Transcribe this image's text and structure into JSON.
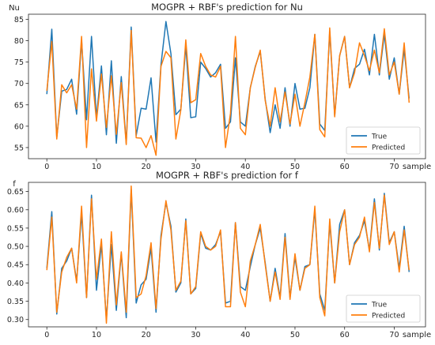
{
  "colors": {
    "true": "#1f77b4",
    "predicted": "#ff7f0e",
    "axis": "#262626",
    "legend_border": "#cccccc"
  },
  "chart_data": [
    {
      "type": "line",
      "title": "MOGPR + RBF's prediction for Nu",
      "ylabel": "Nu",
      "xlabel": "sample",
      "xlim": [
        -3.7,
        76.3
      ],
      "ylim": [
        52.4,
        86.2
      ],
      "xticks": [
        0,
        10,
        20,
        30,
        40,
        50,
        60,
        70
      ],
      "xtick_labels": [
        "0",
        "10",
        "20",
        "30",
        "40",
        "50",
        "60",
        "70"
      ],
      "yticks": [
        55,
        60,
        65,
        70,
        75,
        80,
        85
      ],
      "ytick_labels": [
        "55",
        "60",
        "65",
        "70",
        "75",
        "80",
        "85"
      ],
      "legend": {
        "position": "lower-right",
        "labels": [
          "True",
          "Predicted"
        ]
      },
      "series": [
        {
          "name": "True",
          "color_key": "true",
          "x": [
            0,
            1,
            2,
            3,
            4,
            5,
            6,
            7,
            8,
            9,
            10,
            11,
            12,
            13,
            14,
            15,
            16,
            17,
            18,
            19,
            20,
            21,
            22,
            23,
            24,
            25,
            26,
            27,
            28,
            29,
            30,
            31,
            32,
            33,
            34,
            35,
            36,
            37,
            38,
            39,
            40,
            41,
            42,
            43,
            44,
            45,
            46,
            47,
            48,
            49,
            50,
            51,
            52,
            53,
            54,
            55,
            56,
            57,
            58,
            59,
            60,
            61,
            62,
            63,
            64,
            65,
            66,
            67,
            68,
            69,
            70,
            71,
            72,
            73
          ],
          "values": [
            67.5,
            82.7,
            57.4,
            68.2,
            68.6,
            71.0,
            62.8,
            80.0,
            61.5,
            81.0,
            62.0,
            74.1,
            58.0,
            75.3,
            56.0,
            71.6,
            56.0,
            83.2,
            57.8,
            64.2,
            64.0,
            71.3,
            56.3,
            74.4,
            84.5,
            77.0,
            62.7,
            64.0,
            78.8,
            62.0,
            62.2,
            75.0,
            73.5,
            71.5,
            72.5,
            74.5,
            59.5,
            61.0,
            76.0,
            61.0,
            60.0,
            69.0,
            74.0,
            77.5,
            66.3,
            58.5,
            65.0,
            59.5,
            69.0,
            60.0,
            70.0,
            64.0,
            64.2,
            69.0,
            81.5,
            60.5,
            59.0,
            82.2,
            62.5,
            76.5,
            81.0,
            69.0,
            73.5,
            74.5,
            78.0,
            72.0,
            81.5,
            72.0,
            81.5,
            71.0,
            76.0,
            67.5,
            78.0,
            66.5
          ]
        },
        {
          "name": "Predicted",
          "color_key": "predicted",
          "x": [
            0,
            1,
            2,
            3,
            4,
            5,
            6,
            7,
            8,
            9,
            10,
            11,
            12,
            13,
            14,
            15,
            16,
            17,
            18,
            19,
            20,
            21,
            22,
            23,
            24,
            25,
            26,
            27,
            28,
            29,
            30,
            31,
            32,
            33,
            34,
            35,
            36,
            37,
            38,
            39,
            40,
            41,
            42,
            43,
            44,
            45,
            46,
            47,
            48,
            49,
            50,
            51,
            52,
            53,
            54,
            55,
            56,
            57,
            58,
            59,
            60,
            61,
            62,
            63,
            64,
            65,
            66,
            67,
            68,
            69,
            70,
            71,
            72,
            73
          ],
          "values": [
            68.3,
            79.8,
            57.0,
            69.7,
            67.8,
            69.7,
            64.0,
            81.0,
            55.0,
            73.4,
            61.2,
            72.2,
            59.7,
            71.8,
            58.1,
            70.2,
            55.7,
            82.4,
            57.3,
            57.2,
            55.0,
            57.8,
            53.2,
            74.0,
            77.5,
            76.0,
            57.0,
            63.8,
            80.2,
            65.5,
            66.2,
            77.0,
            74.0,
            72.0,
            71.5,
            74.0,
            55.0,
            63.0,
            81.0,
            59.5,
            58.0,
            69.0,
            73.8,
            77.8,
            66.0,
            60.0,
            69.0,
            61.0,
            68.0,
            60.5,
            67.5,
            60.0,
            65.5,
            71.5,
            81.5,
            59.2,
            57.5,
            83.0,
            62.2,
            76.5,
            81.0,
            69.0,
            72.5,
            79.5,
            76.5,
            73.0,
            77.8,
            72.5,
            82.8,
            72.0,
            75.0,
            67.5,
            79.5,
            65.5
          ]
        }
      ]
    },
    {
      "type": "line",
      "title": "MOGPR + RBF's prediction for f",
      "ylabel": "f",
      "xlabel": "sample",
      "xlim": [
        -3.7,
        76.3
      ],
      "ylim": [
        0.28,
        0.675
      ],
      "xticks": [
        0,
        10,
        20,
        30,
        40,
        50,
        60,
        70
      ],
      "xtick_labels": [
        "0",
        "10",
        "20",
        "30",
        "40",
        "50",
        "60",
        "70"
      ],
      "yticks": [
        0.3,
        0.35,
        0.4,
        0.45,
        0.5,
        0.55,
        0.6,
        0.65
      ],
      "ytick_labels": [
        "0.30",
        "0.35",
        "0.40",
        "0.45",
        "0.50",
        "0.55",
        "0.60",
        "0.65"
      ],
      "legend": {
        "position": "lower-right",
        "labels": [
          "True",
          "Predicted"
        ]
      },
      "series": [
        {
          "name": "True",
          "color_key": "true",
          "x": [
            0,
            1,
            2,
            3,
            4,
            5,
            6,
            7,
            8,
            9,
            10,
            11,
            12,
            13,
            14,
            15,
            16,
            17,
            18,
            19,
            20,
            21,
            22,
            23,
            24,
            25,
            26,
            27,
            28,
            29,
            30,
            31,
            32,
            33,
            34,
            35,
            36,
            37,
            38,
            39,
            40,
            41,
            42,
            43,
            44,
            45,
            46,
            47,
            48,
            49,
            50,
            51,
            52,
            53,
            54,
            55,
            56,
            57,
            58,
            59,
            60,
            61,
            62,
            63,
            64,
            65,
            66,
            67,
            68,
            69,
            70,
            71,
            72,
            73
          ],
          "values": [
            0.44,
            0.595,
            0.315,
            0.44,
            0.46,
            0.495,
            0.405,
            0.59,
            0.36,
            0.64,
            0.38,
            0.505,
            0.3,
            0.505,
            0.325,
            0.48,
            0.305,
            0.655,
            0.345,
            0.395,
            0.41,
            0.495,
            0.32,
            0.53,
            0.62,
            0.555,
            0.375,
            0.4,
            0.575,
            0.37,
            0.385,
            0.535,
            0.495,
            0.49,
            0.505,
            0.54,
            0.345,
            0.35,
            0.565,
            0.39,
            0.38,
            0.445,
            0.505,
            0.55,
            0.455,
            0.35,
            0.44,
            0.36,
            0.535,
            0.36,
            0.47,
            0.38,
            0.445,
            0.45,
            0.6,
            0.37,
            0.325,
            0.565,
            0.4,
            0.56,
            0.6,
            0.45,
            0.51,
            0.53,
            0.57,
            0.49,
            0.63,
            0.49,
            0.645,
            0.51,
            0.54,
            0.44,
            0.555,
            0.43
          ]
        },
        {
          "name": "Predicted",
          "color_key": "predicted",
          "x": [
            0,
            1,
            2,
            3,
            4,
            5,
            6,
            7,
            8,
            9,
            10,
            11,
            12,
            13,
            14,
            15,
            16,
            17,
            18,
            19,
            20,
            21,
            22,
            23,
            24,
            25,
            26,
            27,
            28,
            29,
            30,
            31,
            32,
            33,
            34,
            35,
            36,
            37,
            38,
            39,
            40,
            41,
            42,
            43,
            44,
            45,
            46,
            47,
            48,
            49,
            50,
            51,
            52,
            53,
            54,
            55,
            56,
            57,
            58,
            59,
            60,
            61,
            62,
            63,
            64,
            65,
            66,
            67,
            68,
            69,
            70,
            71,
            72,
            73
          ],
          "values": [
            0.435,
            0.58,
            0.32,
            0.43,
            0.47,
            0.495,
            0.4,
            0.61,
            0.36,
            0.63,
            0.41,
            0.52,
            0.29,
            0.54,
            0.34,
            0.485,
            0.32,
            0.665,
            0.36,
            0.37,
            0.42,
            0.51,
            0.33,
            0.52,
            0.625,
            0.545,
            0.38,
            0.405,
            0.57,
            0.37,
            0.39,
            0.54,
            0.5,
            0.49,
            0.5,
            0.545,
            0.335,
            0.335,
            0.565,
            0.375,
            0.335,
            0.46,
            0.505,
            0.56,
            0.45,
            0.35,
            0.43,
            0.355,
            0.525,
            0.355,
            0.48,
            0.38,
            0.44,
            0.45,
            0.61,
            0.36,
            0.31,
            0.575,
            0.4,
            0.54,
            0.6,
            0.45,
            0.505,
            0.525,
            0.58,
            0.485,
            0.62,
            0.495,
            0.64,
            0.505,
            0.54,
            0.43,
            0.545,
            0.435
          ]
        }
      ]
    }
  ]
}
